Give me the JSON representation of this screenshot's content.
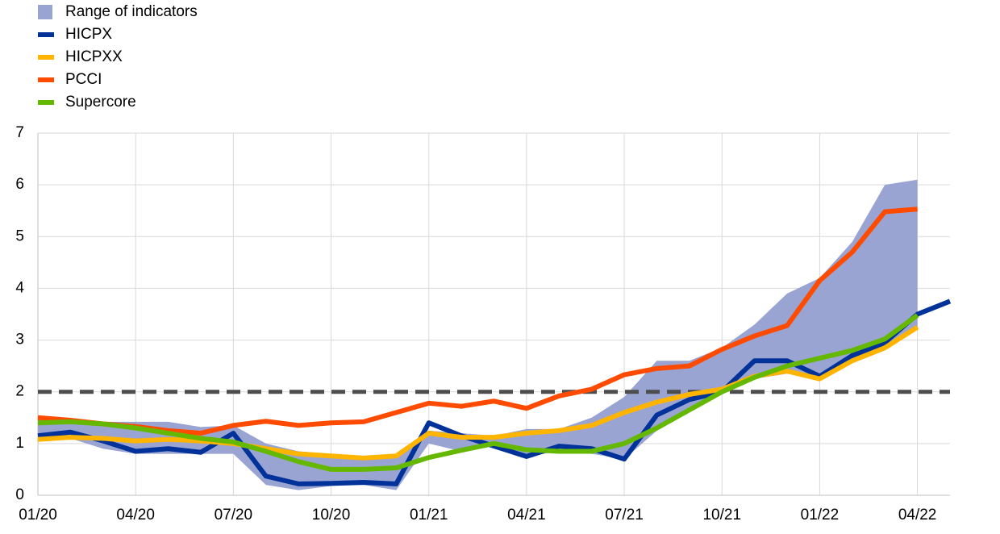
{
  "chart_data": {
    "type": "line",
    "categories": [
      "01/20",
      null,
      null,
      "04/20",
      null,
      null,
      "07/20",
      null,
      null,
      "10/20",
      null,
      null,
      "01/21",
      null,
      null,
      "04/21",
      null,
      null,
      "07/21",
      null,
      null,
      "10/21",
      null,
      null,
      "01/22",
      null,
      null,
      "04/22",
      null
    ],
    "ylim": [
      0,
      7
    ],
    "yticks": [
      0,
      1,
      2,
      3,
      4,
      5,
      6,
      7
    ],
    "grid": true,
    "hline": {
      "value": 2,
      "color": "#4d4d4d"
    },
    "series": [
      {
        "name": "Range of indicators",
        "type": "area",
        "color": "#99a4d3",
        "low": [
          1.05,
          1.1,
          0.9,
          0.8,
          0.8,
          0.8,
          0.8,
          0.2,
          0.1,
          0.18,
          0.2,
          0.1,
          1.0,
          0.85,
          0.95,
          0.75,
          0.85,
          0.8,
          0.7,
          1.25,
          1.6,
          1.95,
          2.25,
          2.35,
          2.25,
          2.55,
          2.8,
          3.2,
          null
        ],
        "high": [
          1.52,
          1.48,
          1.42,
          1.42,
          1.42,
          1.32,
          1.35,
          1.0,
          0.85,
          0.8,
          0.76,
          0.78,
          1.25,
          1.2,
          1.15,
          1.28,
          1.28,
          1.5,
          1.9,
          2.6,
          2.6,
          2.85,
          3.3,
          3.9,
          4.2,
          4.9,
          6.0,
          6.1,
          null
        ]
      },
      {
        "name": "HICPX",
        "type": "line",
        "color": "#003299",
        "values": [
          1.15,
          1.22,
          1.05,
          0.85,
          0.9,
          0.83,
          1.2,
          0.37,
          0.22,
          0.23,
          0.25,
          0.22,
          1.4,
          1.15,
          0.95,
          0.75,
          0.95,
          0.9,
          0.7,
          1.55,
          1.85,
          2.0,
          2.6,
          2.6,
          2.3,
          2.7,
          2.95,
          3.5,
          3.75
        ]
      },
      {
        "name": "HICPXX",
        "type": "line",
        "color": "#ffb400",
        "values": [
          1.08,
          1.12,
          1.1,
          1.05,
          1.08,
          1.05,
          1.0,
          0.9,
          0.8,
          0.76,
          0.72,
          0.76,
          1.2,
          1.12,
          1.12,
          1.2,
          1.25,
          1.35,
          1.6,
          1.8,
          1.95,
          2.05,
          2.3,
          2.4,
          2.25,
          2.6,
          2.85,
          3.25,
          null
        ]
      },
      {
        "name": "PCCI",
        "type": "line",
        "color": "#ff4b00",
        "values": [
          1.5,
          1.45,
          1.38,
          1.33,
          1.25,
          1.2,
          1.35,
          1.43,
          1.35,
          1.4,
          1.42,
          1.6,
          1.78,
          1.72,
          1.82,
          1.68,
          1.92,
          2.05,
          2.33,
          2.45,
          2.5,
          2.82,
          3.08,
          3.28,
          4.15,
          4.7,
          5.48,
          5.53,
          null
        ]
      },
      {
        "name": "Supercore",
        "type": "line",
        "color": "#65b800",
        "values": [
          1.4,
          1.42,
          1.38,
          1.3,
          1.2,
          1.1,
          1.03,
          0.85,
          0.65,
          0.5,
          0.5,
          0.53,
          0.73,
          0.87,
          1.0,
          0.88,
          0.85,
          0.85,
          1.0,
          1.3,
          1.65,
          2.0,
          2.28,
          2.5,
          2.65,
          2.8,
          3.02,
          3.48,
          null
        ]
      }
    ]
  }
}
